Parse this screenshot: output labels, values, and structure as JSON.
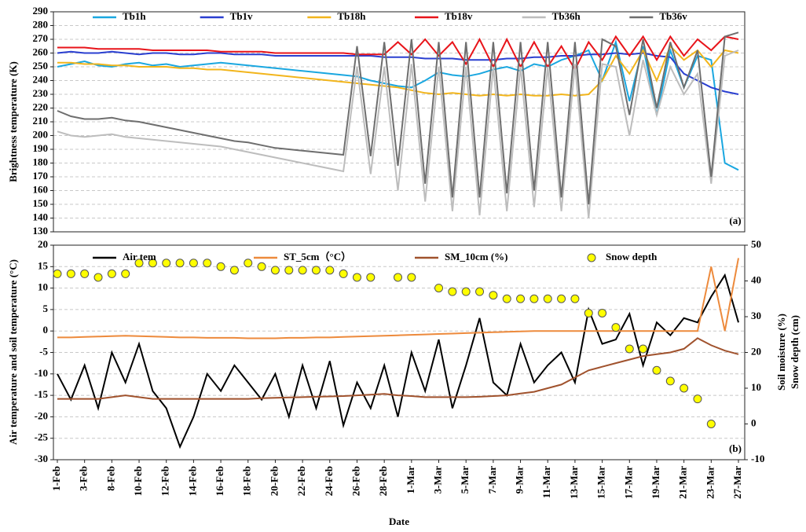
{
  "chart_data": [
    {
      "type": "line",
      "ylabel": "Brightness temperature (K)",
      "annotation": "(a)",
      "ylim": [
        130,
        290
      ],
      "yticks": [
        130,
        140,
        150,
        160,
        170,
        180,
        190,
        200,
        210,
        220,
        230,
        240,
        250,
        260,
        270,
        280,
        290
      ],
      "grid": true,
      "legend": "top",
      "series": [
        {
          "name": "Tb1h",
          "color": "#1aa7e0",
          "values": [
            250,
            252,
            254,
            251,
            250,
            252,
            253,
            251,
            252,
            250,
            251,
            252,
            253,
            252,
            251,
            250,
            249,
            248,
            247,
            246,
            245,
            244,
            243,
            240,
            238,
            236,
            235,
            240,
            246,
            244,
            243,
            245,
            248,
            250,
            247,
            252,
            250,
            255,
            258,
            262,
            240,
            268,
            225,
            265,
            215,
            262,
            235,
            258,
            255,
            180,
            175
          ]
        },
        {
          "name": "Tb1v",
          "color": "#2a3fd0",
          "values": [
            260,
            261,
            260,
            260,
            261,
            260,
            259,
            260,
            260,
            259,
            259,
            260,
            260,
            259,
            259,
            259,
            258,
            258,
            258,
            258,
            258,
            258,
            258,
            258,
            257,
            257,
            257,
            256,
            256,
            256,
            255,
            255,
            255,
            256,
            256,
            257,
            257,
            258,
            258,
            259,
            259,
            260,
            259,
            260,
            258,
            257,
            245,
            240,
            235,
            232,
            230
          ]
        },
        {
          "name": "Tb18h",
          "color": "#f2b51c",
          "values": [
            253,
            253,
            252,
            252,
            251,
            251,
            250,
            250,
            250,
            249,
            249,
            248,
            248,
            247,
            246,
            245,
            244,
            243,
            242,
            241,
            240,
            239,
            238,
            237,
            236,
            235,
            233,
            231,
            230,
            231,
            230,
            229,
            230,
            229,
            230,
            229,
            229,
            230,
            229,
            230,
            240,
            258,
            245,
            262,
            240,
            265,
            255,
            262,
            250,
            262,
            260
          ]
        },
        {
          "name": "Tb18v",
          "color": "#e8141a",
          "values": [
            264,
            264,
            264,
            263,
            263,
            263,
            263,
            262,
            262,
            262,
            262,
            262,
            261,
            261,
            261,
            261,
            260,
            260,
            260,
            260,
            260,
            260,
            259,
            259,
            259,
            268,
            259,
            270,
            258,
            268,
            252,
            270,
            250,
            270,
            250,
            268,
            250,
            265,
            248,
            268,
            255,
            272,
            258,
            272,
            255,
            272,
            258,
            270,
            262,
            272,
            270
          ]
        },
        {
          "name": "Tb36h",
          "color": "#bdbdbd",
          "values": [
            203,
            200,
            199,
            200,
            201,
            199,
            198,
            197,
            196,
            195,
            194,
            193,
            192,
            190,
            188,
            186,
            184,
            182,
            180,
            178,
            176,
            174,
            250,
            172,
            250,
            160,
            252,
            152,
            250,
            145,
            250,
            142,
            250,
            145,
            250,
            148,
            250,
            145,
            252,
            140,
            252,
            250,
            200,
            255,
            215,
            250,
            230,
            245,
            165,
            258,
            262
          ]
        },
        {
          "name": "Tb36v",
          "color": "#6e6e6e",
          "values": [
            218,
            214,
            212,
            212,
            213,
            211,
            210,
            208,
            206,
            204,
            202,
            200,
            198,
            196,
            195,
            193,
            191,
            190,
            189,
            188,
            187,
            186,
            265,
            185,
            268,
            178,
            270,
            165,
            268,
            155,
            268,
            155,
            268,
            158,
            268,
            160,
            268,
            155,
            268,
            150,
            270,
            265,
            215,
            270,
            220,
            268,
            235,
            262,
            170,
            272,
            275
          ]
        }
      ]
    },
    {
      "type": "line",
      "xlabel": "Date",
      "ylabel": "Air temperature and soil temperature (°C)",
      "y2label": [
        "Soil moisture (%)",
        "Snow depth (cm)"
      ],
      "annotation": "(b)",
      "categories": [
        "1-Feb",
        null,
        "3-Feb",
        null,
        "8-Feb",
        null,
        "10-Feb",
        null,
        "12-Feb",
        null,
        "14-Feb",
        null,
        "16-Feb",
        null,
        "18-Feb",
        null,
        "20-Feb",
        null,
        "22-Feb",
        null,
        "24-Feb",
        null,
        "26-Feb",
        null,
        "28-Feb",
        null,
        "1-Mar",
        null,
        "3-Mar",
        null,
        "5-Mar",
        null,
        "7-Mar",
        null,
        "9-Mar",
        null,
        "11-Mar",
        null,
        "13-Mar",
        null,
        "15-Mar",
        null,
        "17-Mar",
        null,
        "19-Mar",
        null,
        "21-Mar",
        null,
        "23-Mar",
        null,
        "27-Mar"
      ],
      "ylim": [
        -30,
        20
      ],
      "yticks": [
        -30,
        -25,
        -20,
        -15,
        -10,
        -5,
        0,
        5,
        10,
        15,
        20
      ],
      "y2lim": [
        -10,
        50
      ],
      "y2ticks": [
        -10,
        0,
        10,
        20,
        30,
        40,
        50
      ],
      "grid": true,
      "legend": "top",
      "series": [
        {
          "name": "Air tem",
          "color": "#000000",
          "values": [
            -10,
            -16,
            -8,
            -18,
            -5,
            -12,
            -3,
            -14,
            -18,
            -27,
            -20,
            -10,
            -14,
            -8,
            -12,
            -16,
            -10,
            -20,
            -8,
            -18,
            -7,
            -22,
            -12,
            -18,
            -8,
            -20,
            -5,
            -14,
            -2,
            -18,
            -8,
            3,
            -12,
            -15,
            -3,
            -12,
            -8,
            -5,
            -12,
            5,
            -3,
            -2,
            4,
            -8,
            2,
            -1,
            3,
            2,
            8,
            13,
            2
          ]
        },
        {
          "name": "ST_5cm（°C）",
          "color": "#ed8a3c",
          "values": [
            -1.5,
            -1.5,
            -1.4,
            -1.3,
            -1.2,
            -1.1,
            -1.2,
            -1.3,
            -1.4,
            -1.5,
            -1.5,
            -1.6,
            -1.6,
            -1.6,
            -1.7,
            -1.7,
            -1.7,
            -1.6,
            -1.6,
            -1.5,
            -1.5,
            -1.4,
            -1.3,
            -1.2,
            -1.1,
            -1.0,
            -0.9,
            -0.8,
            -0.7,
            -0.6,
            -0.5,
            -0.4,
            -0.3,
            -0.2,
            -0.1,
            0,
            0,
            0,
            0,
            0,
            0,
            0,
            0,
            0,
            0,
            0,
            0,
            0,
            15,
            0,
            17
          ]
        },
        {
          "name": "SM_10cm (%)",
          "color": "#a0522d",
          "axis": "y2",
          "values": [
            7,
            7,
            7,
            7,
            7.5,
            8,
            7.5,
            7,
            7,
            7,
            7,
            7,
            7,
            7,
            7,
            7.2,
            7.3,
            7.4,
            7.5,
            7.6,
            7.7,
            7.8,
            8,
            8.2,
            8.4,
            8,
            7.8,
            7.5,
            7.5,
            7.5,
            7.5,
            7.6,
            7.8,
            8,
            8.5,
            9,
            10,
            11,
            13,
            15,
            16,
            17,
            18,
            19,
            19.5,
            20,
            21,
            24,
            22,
            20.5,
            19.5
          ]
        },
        {
          "name": "Snow depth",
          "color": "#ffff00",
          "axis": "y2",
          "type": "scatter",
          "values": [
            42,
            42,
            42,
            41,
            42,
            42,
            45,
            45,
            45,
            45,
            45,
            45,
            44,
            43,
            45,
            44,
            43,
            43,
            43,
            43,
            43,
            42,
            41,
            41,
            null,
            41,
            41,
            null,
            38,
            37,
            37,
            37,
            36,
            35,
            35,
            35,
            35,
            35,
            35,
            31,
            31,
            27,
            21,
            21,
            15,
            12,
            10,
            7,
            0,
            null,
            null
          ]
        }
      ]
    }
  ]
}
